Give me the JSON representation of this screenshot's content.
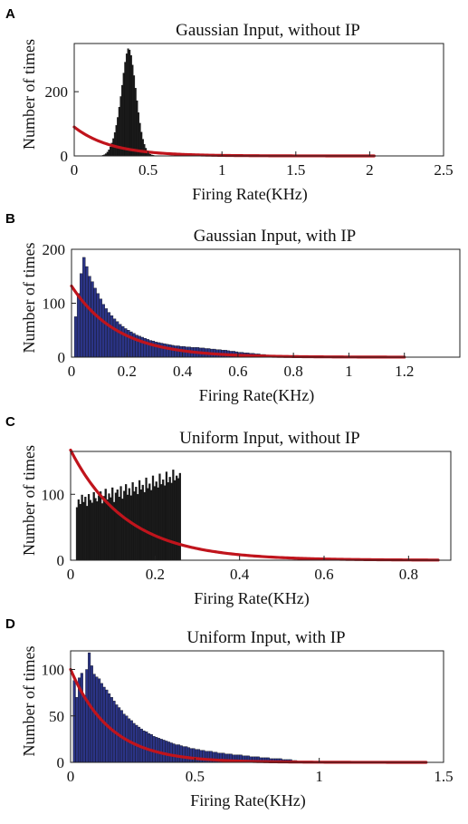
{
  "colors": {
    "black_bars": "#1b1b1b",
    "blue_bars": "#2b3486",
    "fit_curve": "#c0141c"
  },
  "chart_data": [
    {
      "panel": "A",
      "type": "bar",
      "title": "Gaussian Input, without IP",
      "xlabel": "Firing Rate(KHz)",
      "ylabel": "Number of times",
      "xlim": [
        0,
        2.5
      ],
      "ylim": [
        0,
        350
      ],
      "xticks": [
        0,
        0.5,
        1,
        1.5,
        2,
        2.5
      ],
      "xtick_labels": [
        "0",
        "0.5",
        "1",
        "1.5",
        "2",
        "2.5"
      ],
      "yticks": [
        0,
        200
      ],
      "ytick_labels": [
        "0",
        "200"
      ],
      "bar_color": "#1b1b1b",
      "histogram": {
        "bin_width": 0.01,
        "bin_start": 0.19,
        "counts": [
          2,
          4,
          7,
          12,
          19,
          28,
          40,
          54,
          73,
          95,
          120,
          152,
          185,
          220,
          258,
          292,
          318,
          334,
          330,
          313,
          283,
          250,
          211,
          172,
          135,
          102,
          74,
          52,
          36,
          24,
          15,
          9,
          5,
          3,
          2
        ]
      },
      "fit_curve": {
        "type": "exponential",
        "y0": 90,
        "rate": 4.0,
        "x_end": 2.03
      }
    },
    {
      "panel": "B",
      "type": "bar",
      "title": "Gaussian Input, with IP",
      "xlabel": "Firing Rate(KHz)",
      "ylabel": "Number of times",
      "xlim": [
        0,
        1.4
      ],
      "ylim": [
        0,
        200
      ],
      "xticks": [
        0,
        0.2,
        0.4,
        0.6,
        0.8,
        1,
        1.2
      ],
      "xtick_labels": [
        "0",
        "0.2",
        "0.4",
        "0.6",
        "0.8",
        "1",
        "1.2"
      ],
      "yticks": [
        0,
        100,
        200
      ],
      "ytick_labels": [
        "0",
        "100",
        "200"
      ],
      "bar_color": "#2b3486",
      "histogram": {
        "bin_width": 0.01,
        "bin_start": 0.01,
        "counts": [
          75,
          118,
          155,
          185,
          168,
          150,
          140,
          128,
          118,
          108,
          98,
          90,
          83,
          77,
          71,
          66,
          61,
          57,
          53,
          50,
          47,
          44,
          41,
          39,
          37,
          35,
          33,
          31,
          30,
          28,
          27,
          26,
          25,
          24,
          23,
          22,
          21,
          21,
          20,
          20,
          19,
          19,
          18,
          18,
          18,
          17,
          17,
          16,
          16,
          15,
          15,
          14,
          14,
          13,
          13,
          12,
          11,
          11,
          10,
          9,
          9,
          8,
          8,
          7,
          7,
          6,
          6,
          5,
          5,
          4,
          4,
          3,
          3,
          3,
          2,
          2,
          2,
          2,
          1,
          1,
          1,
          1,
          1,
          1,
          1
        ]
      },
      "fit_curve": {
        "type": "exponential",
        "y0": 132,
        "rate": 6.0,
        "x_end": 1.2
      }
    },
    {
      "panel": "C",
      "type": "bar",
      "title": "Uniform Input, without IP",
      "xlabel": "Firing Rate(KHz)",
      "ylabel": "Number of times",
      "xlim": [
        0,
        0.9
      ],
      "ylim": [
        0,
        165
      ],
      "xticks": [
        0,
        0.2,
        0.4,
        0.6,
        0.8
      ],
      "xtick_labels": [
        "0",
        "0.2",
        "0.4",
        "0.6",
        "0.8"
      ],
      "yticks": [
        0,
        100
      ],
      "ytick_labels": [
        "0",
        "100"
      ],
      "bar_color": "#1b1b1b",
      "histogram": {
        "bin_width": 0.004,
        "bin_start": 0.013,
        "counts": [
          80,
          92,
          85,
          99,
          88,
          96,
          82,
          100,
          91,
          87,
          103,
          94,
          89,
          98,
          104,
          86,
          97,
          108,
          92,
          101,
          95,
          110,
          88,
          102,
          107,
          96,
          112,
          93,
          105,
          115,
          99,
          109,
          98,
          118,
          104,
          111,
          100,
          121,
          107,
          114,
          103,
          125,
          109,
          116,
          106,
          128,
          112,
          119,
          110,
          131,
          115,
          122,
          113,
          134,
          118,
          126,
          117,
          137,
          121,
          128,
          124,
          132
        ]
      },
      "fit_curve": {
        "type": "exponential",
        "y0": 167,
        "rate": 7.5,
        "x_end": 0.87
      }
    },
    {
      "panel": "D",
      "type": "bar",
      "title": "Uniform Input, with IP",
      "xlabel": "Firing Rate(KHz)",
      "ylabel": "Number of times",
      "xlim": [
        0,
        1.5
      ],
      "ylim": [
        0,
        120
      ],
      "xticks": [
        0,
        0.5,
        1,
        1.5
      ],
      "xtick_labels": [
        "0",
        "0.5",
        "1",
        "1.5"
      ],
      "yticks": [
        0,
        50,
        100
      ],
      "ytick_labels": [
        "0",
        "50",
        "100"
      ],
      "bar_color": "#2b3486",
      "histogram": {
        "bin_width": 0.01,
        "bin_start": 0.01,
        "counts": [
          88,
          70,
          91,
          96,
          72,
          100,
          118,
          104,
          95,
          92,
          90,
          85,
          81,
          78,
          74,
          70,
          66,
          62,
          59,
          56,
          52,
          50,
          47,
          45,
          42,
          40,
          38,
          36,
          34,
          33,
          31,
          30,
          28,
          27,
          26,
          25,
          24,
          23,
          22,
          21,
          20,
          19,
          19,
          18,
          17,
          17,
          16,
          15,
          15,
          14,
          14,
          13,
          13,
          12,
          12,
          12,
          11,
          11,
          10,
          10,
          10,
          9,
          9,
          9,
          8,
          8,
          8,
          8,
          7,
          7,
          7,
          6,
          6,
          6,
          6,
          5,
          5,
          5,
          5,
          4,
          4,
          4,
          4,
          4,
          3,
          3,
          3,
          3,
          2,
          2
        ]
      },
      "fit_curve": {
        "type": "exponential",
        "y0": 100,
        "rate": 6.3,
        "x_end": 1.43
      }
    }
  ]
}
